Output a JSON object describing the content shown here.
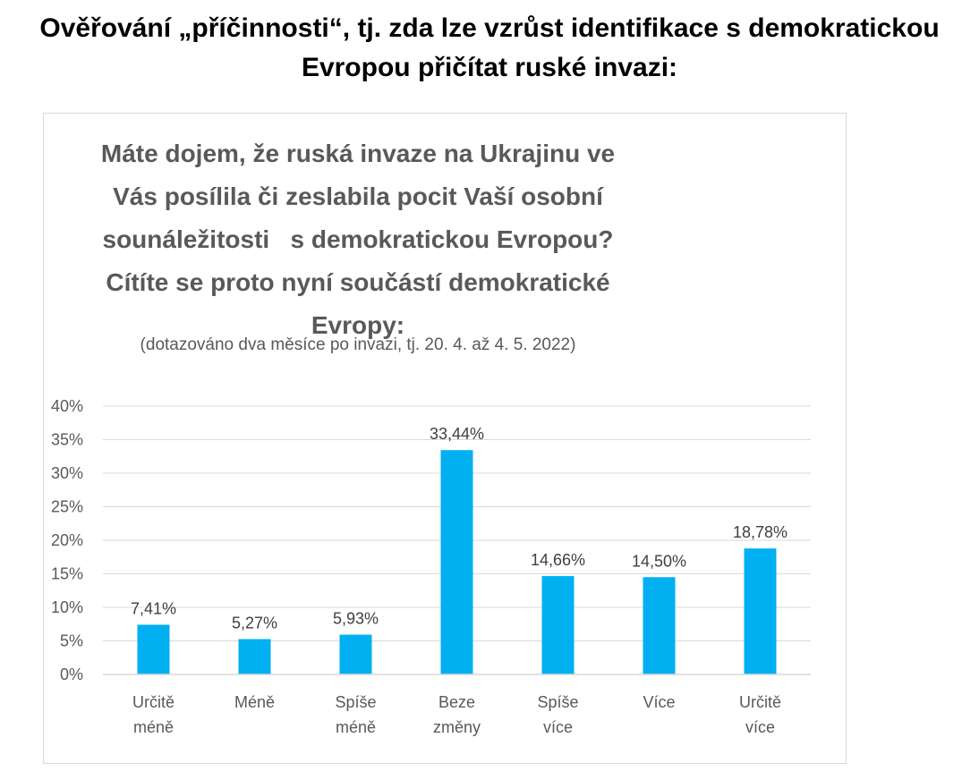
{
  "page": {
    "title_lines": [
      "Ověřování „příčinnosti“, tj. zda lze vzrůst identifikace s demokratickou",
      "Evropou přičítat ruské invazi:"
    ]
  },
  "chart_data": {
    "type": "bar",
    "title_lines": [
      "Máte dojem, že ruská invaze na Ukrajinu ve",
      "Vás posílila či zeslabila pocit Vaší osobní",
      "sounáležitosti   s demokratickou Evropou?",
      "Cítíte se proto nyní součástí demokratické",
      "Evropy:"
    ],
    "subtitle": "(dotazováno dva měsíce po invazi, tj. 20. 4. až 4. 5. 2022)",
    "categories": [
      [
        "Určitě",
        "méně"
      ],
      [
        "Méně"
      ],
      [
        "Spíše",
        "méně"
      ],
      [
        "Beze",
        "změny"
      ],
      [
        "Spíše",
        "více"
      ],
      [
        "Více"
      ],
      [
        "Určitě",
        "více"
      ]
    ],
    "values": [
      7.41,
      5.27,
      5.93,
      33.44,
      14.66,
      14.5,
      18.78
    ],
    "data_labels": [
      "7,41%",
      "5,27%",
      "5,93%",
      "33,44%",
      "14,66%",
      "14,50%",
      "18,78%"
    ],
    "y_ticks": [
      0,
      5,
      10,
      15,
      20,
      25,
      30,
      35,
      40
    ],
    "y_tick_labels": [
      "0%",
      "5%",
      "10%",
      "15%",
      "20%",
      "25%",
      "30%",
      "35%",
      "40%"
    ],
    "ylim": [
      0,
      40
    ],
    "grid": true,
    "legend": "none",
    "colors": {
      "bar": "#00b0f0",
      "grid": "#d9d9d9",
      "text": "#595959",
      "labels": "#404040"
    }
  }
}
